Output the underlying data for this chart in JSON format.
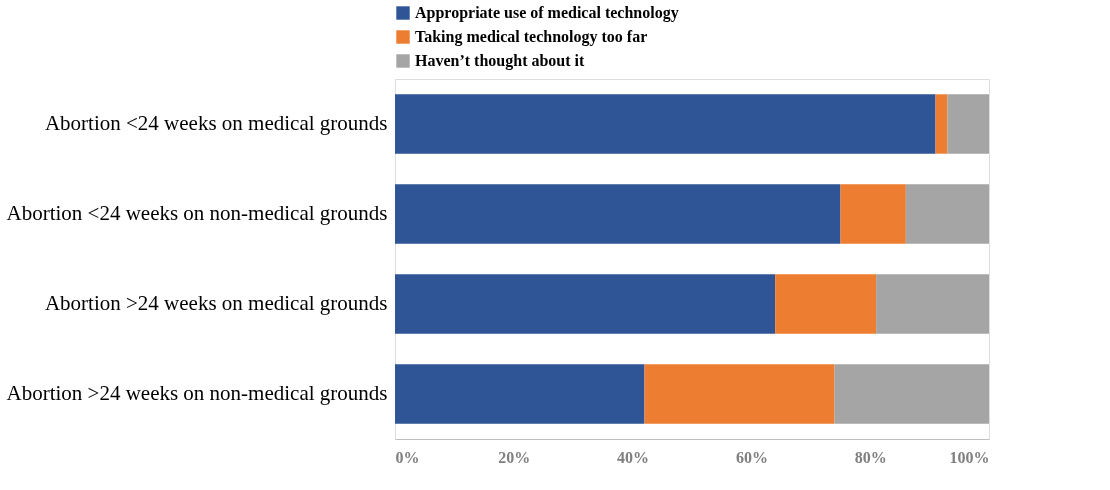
{
  "chart_data": {
    "type": "bar",
    "orientation": "horizontal",
    "stacked": true,
    "categories": [
      "Abortion <24 weeks on medical grounds",
      "Abortion <24 weeks on non-medical grounds",
      "Abortion >24 weeks on medical grounds",
      "Abortion >24 weeks on non-medical grounds"
    ],
    "series": [
      {
        "name": "Appropriate use of medical technology",
        "color": "#2f5597",
        "values": [
          91,
          75,
          64,
          42
        ]
      },
      {
        "name": "Taking medical technology too far",
        "color": "#ed7d31",
        "values": [
          2,
          11,
          17,
          32
        ]
      },
      {
        "name": "Haven’t thought about it",
        "color": "#a5a5a5",
        "values": [
          7,
          14,
          19,
          26
        ]
      }
    ],
    "xlim": [
      0,
      100
    ],
    "xticks": [
      {
        "value": 0,
        "label": "0%"
      },
      {
        "value": 20,
        "label": "20%"
      },
      {
        "value": 40,
        "label": "40%"
      },
      {
        "value": 60,
        "label": "60%"
      },
      {
        "value": 80,
        "label": "80%"
      },
      {
        "value": 100,
        "label": "100%"
      }
    ],
    "grid": false,
    "legend": "top"
  }
}
